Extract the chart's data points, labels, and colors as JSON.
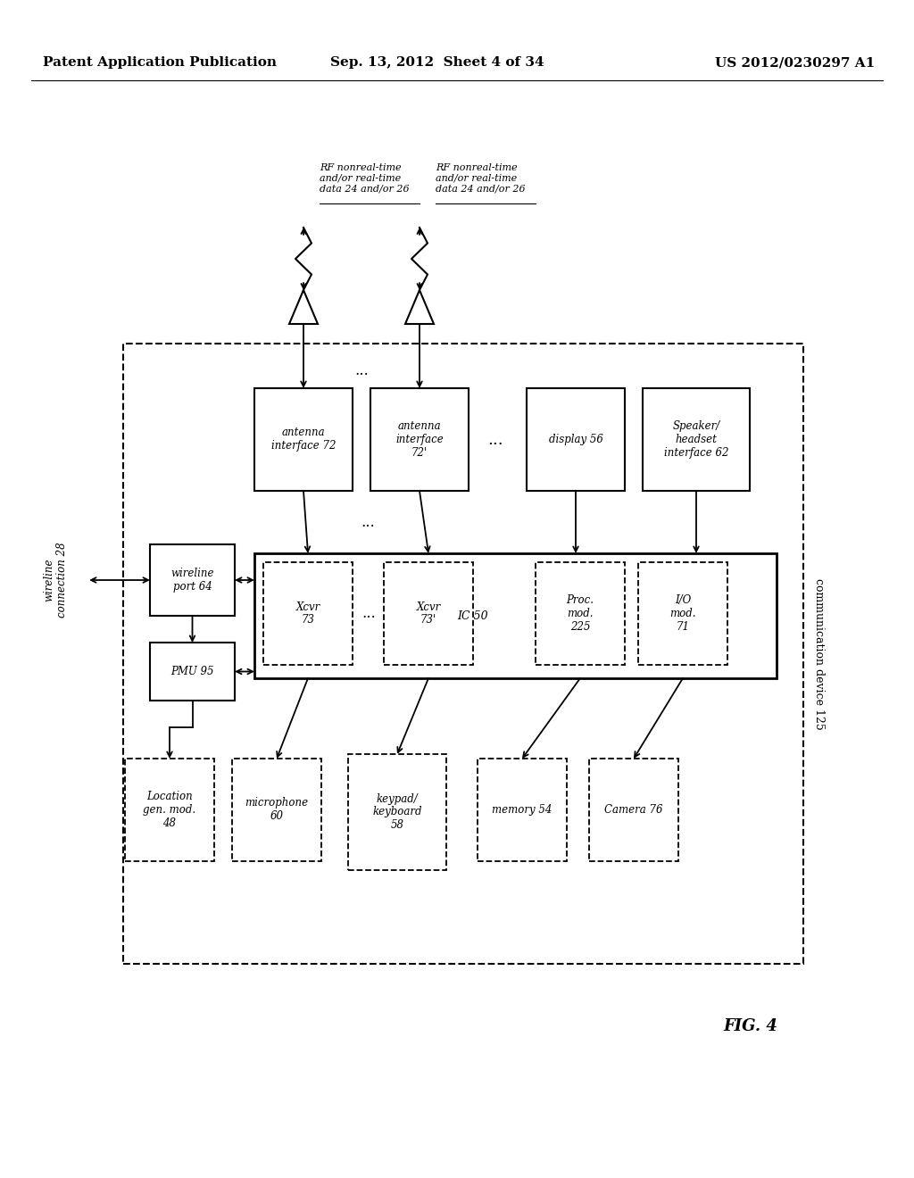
{
  "header_left": "Patent Application Publication",
  "header_mid": "Sep. 13, 2012  Sheet 4 of 34",
  "header_right": "US 2012/0230297 A1",
  "fig_label": "FIG. 4",
  "comm_device_label": "communication device 125",
  "wireline_label": "wireline\nconnection 28",
  "background_color": "#ffffff",
  "text_color": "#000000"
}
